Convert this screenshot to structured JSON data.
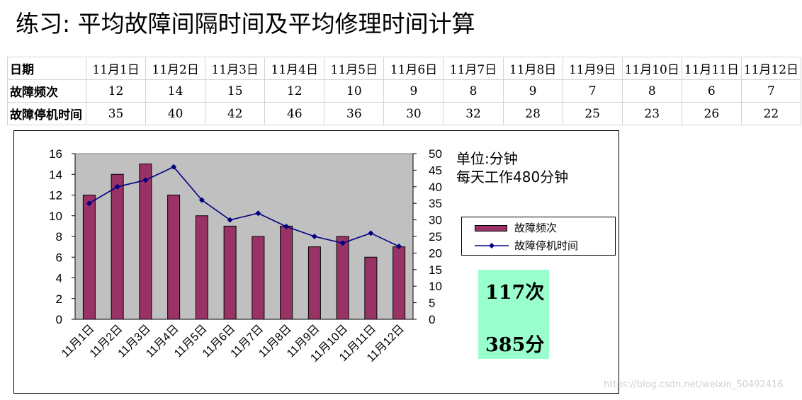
{
  "title": "练习: 平均故障间隔时间及平均修理时间计算",
  "table": {
    "rows": [
      {
        "header": "日期",
        "cells": [
          "11月1日",
          "11月2日",
          "11月3日",
          "11月4日",
          "11月5日",
          "11月6日",
          "11月7日",
          "11月8日",
          "11月9日",
          "11月10日",
          "11月11日",
          "11月12日"
        ]
      },
      {
        "header": "故障频次",
        "cells": [
          "12",
          "14",
          "15",
          "12",
          "10",
          "9",
          "8",
          "9",
          "7",
          "8",
          "6",
          "7"
        ]
      },
      {
        "header": "故障停机时间",
        "cells": [
          "35",
          "40",
          "42",
          "46",
          "36",
          "30",
          "32",
          "28",
          "25",
          "23",
          "26",
          "22"
        ]
      }
    ]
  },
  "note": {
    "line1": "单位:分钟",
    "line2": "每天工作480分钟"
  },
  "totals": {
    "count": "117次",
    "minutes": "385分"
  },
  "watermark": "https://blog.csdn.net/weixin_50492416",
  "colors": {
    "bar": "#993366",
    "line": "#000080",
    "plot_bg": "#c0c0c0",
    "totals_bg": "#99ffcc"
  },
  "chart_data": {
    "type": "bar",
    "categories": [
      "11月1日",
      "11月2日",
      "11月3日",
      "11月4日",
      "11月5日",
      "11月6日",
      "11月7日",
      "11月8日",
      "11月9日",
      "11月10日",
      "11月11日",
      "11月12日"
    ],
    "series": [
      {
        "name": "故障频次",
        "type": "bar",
        "axis": "left",
        "values": [
          12,
          14,
          15,
          12,
          10,
          9,
          8,
          9,
          7,
          8,
          6,
          7
        ]
      },
      {
        "name": "故障停机时间",
        "type": "line",
        "axis": "right",
        "values": [
          35,
          40,
          42,
          46,
          36,
          30,
          32,
          28,
          25,
          23,
          26,
          22
        ]
      }
    ],
    "y_left": {
      "min": 0,
      "max": 16,
      "ticks": [
        0,
        2,
        4,
        6,
        8,
        10,
        12,
        14,
        16
      ]
    },
    "y_right": {
      "min": 0,
      "max": 50,
      "ticks": [
        0,
        5,
        10,
        15,
        20,
        25,
        30,
        35,
        40,
        45,
        50
      ]
    },
    "grid": false,
    "legend_position": "right"
  }
}
